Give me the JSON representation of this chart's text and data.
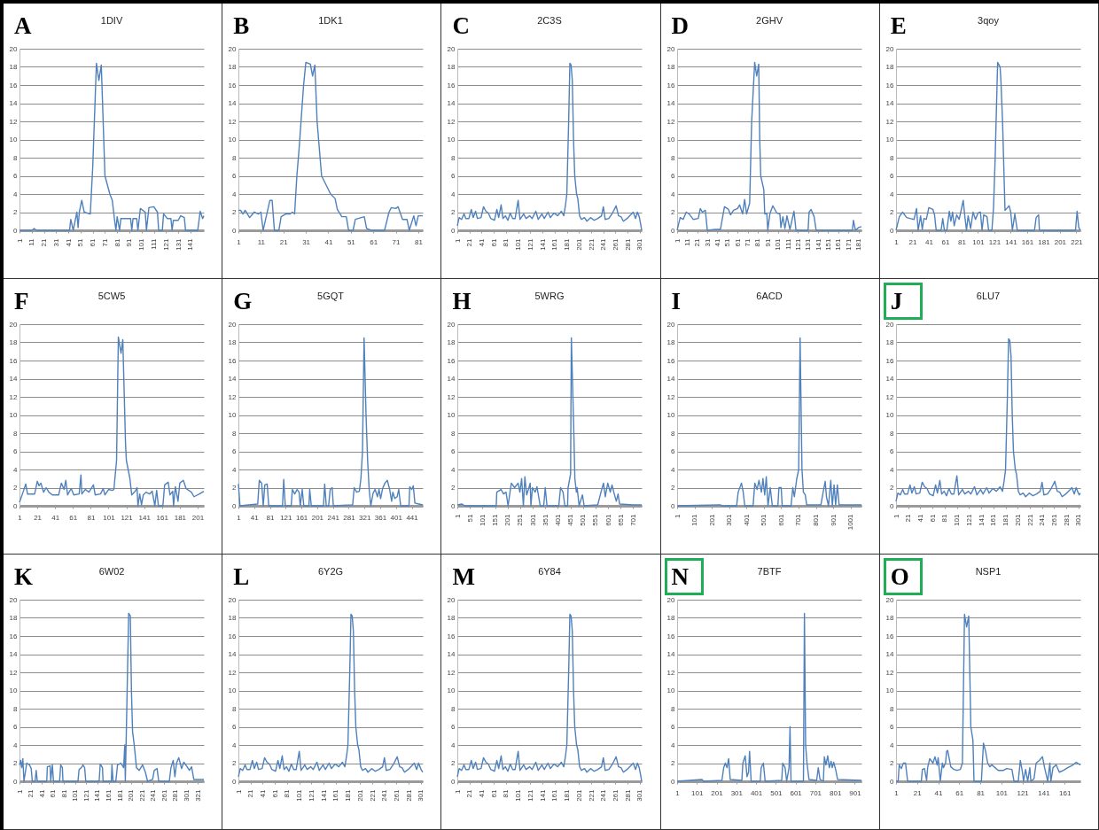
{
  "chart_data": [
    {
      "type": "line",
      "title": "1DIV",
      "annotations": [
        "A"
      ],
      "color": "#4f81bd",
      "grid": "y",
      "ylim": [
        0,
        20
      ],
      "yticks": [
        0,
        2,
        4,
        6,
        8,
        10,
        12,
        14,
        16,
        18,
        20
      ],
      "xlim": [
        1,
        152
      ],
      "xticks": [
        1,
        11,
        21,
        31,
        41,
        51,
        61,
        71,
        81,
        91,
        101,
        111,
        121,
        131,
        141
      ],
      "x": [
        1,
        11,
        13,
        15,
        42,
        43,
        45,
        48,
        49,
        50,
        52,
        54,
        59,
        61,
        64,
        66,
        68,
        71,
        75,
        77,
        79,
        80,
        81,
        83,
        84,
        88,
        92,
        93,
        94,
        97,
        98,
        100,
        104,
        105,
        107,
        111,
        114,
        115,
        118,
        119,
        122,
        125,
        126,
        127,
        131,
        133,
        136,
        137,
        147,
        149,
        151,
        152
      ],
      "values": [
        0,
        0,
        0.2,
        0,
        0,
        1.2,
        0,
        2,
        0.3,
        2,
        3.3,
        2,
        1.8,
        7,
        18.4,
        16.5,
        18.2,
        6,
        4,
        3.3,
        1,
        0,
        1.5,
        0,
        1.3,
        1.3,
        1.3,
        0,
        1.3,
        1.3,
        0,
        2.4,
        2,
        0,
        2.5,
        2.6,
        2,
        0,
        0,
        1.8,
        1.3,
        1.3,
        0,
        1.1,
        1.1,
        1.6,
        1.4,
        0,
        0,
        2.1,
        1.3,
        1.6
      ]
    },
    {
      "type": "line",
      "title": "1DK1",
      "annotations": [
        "B"
      ],
      "color": "#4f81bd",
      "grid": "y",
      "ylim": [
        0,
        20
      ],
      "yticks": [
        0,
        2,
        4,
        6,
        8,
        10,
        12,
        14,
        16,
        18,
        20
      ],
      "xlim": [
        1,
        83
      ],
      "xticks": [
        1,
        11,
        21,
        31,
        41,
        51,
        61,
        71,
        81
      ],
      "x": [
        1,
        2,
        3,
        4,
        6,
        8,
        10,
        11,
        12,
        15,
        16,
        17,
        19,
        20,
        22,
        24,
        25,
        26,
        27,
        28,
        30,
        31,
        33,
        34,
        35,
        36,
        38,
        40,
        42,
        44,
        45,
        47,
        49,
        50,
        52,
        53,
        57,
        58,
        60,
        66,
        68,
        69,
        71,
        72,
        74,
        76,
        77,
        79,
        80,
        81,
        83
      ],
      "values": [
        2.2,
        2.2,
        1.8,
        2.2,
        1.4,
        2,
        1.8,
        2,
        0,
        3.3,
        3.3,
        0,
        0,
        1.5,
        1.8,
        1.8,
        2,
        1.8,
        6,
        9,
        16,
        18.5,
        18.3,
        17,
        18.2,
        12,
        6,
        5,
        4,
        3.5,
        2.3,
        1.5,
        1.5,
        0,
        0,
        1.2,
        1.5,
        0.2,
        0,
        0,
        2,
        2.5,
        2.4,
        2.6,
        1.2,
        1.2,
        0,
        1.6,
        0.5,
        1.6,
        1.6
      ]
    },
    {
      "type": "line",
      "title": "2C3S",
      "annotations": [
        "C"
      ],
      "color": "#4f81bd",
      "grid": "y",
      "ylim": [
        0,
        20
      ],
      "yticks": [
        0,
        2,
        4,
        6,
        8,
        10,
        12,
        14,
        16,
        18,
        20
      ],
      "xlim": [
        1,
        304
      ],
      "xticks": [
        1,
        21,
        41,
        61,
        81,
        101,
        121,
        141,
        161,
        181,
        201,
        221,
        241,
        261,
        281,
        301
      ],
      "x": [
        1,
        4,
        8,
        12,
        15,
        20,
        24,
        27,
        31,
        34,
        40,
        44,
        48,
        52,
        56,
        62,
        66,
        69,
        73,
        76,
        80,
        84,
        88,
        92,
        96,
        101,
        104,
        110,
        114,
        120,
        124,
        130,
        134,
        140,
        144,
        150,
        154,
        160,
        166,
        172,
        176,
        179,
        181,
        184,
        186,
        188,
        190,
        192,
        194,
        197,
        199,
        202,
        205,
        210,
        214,
        220,
        226,
        232,
        238,
        241,
        244,
        250,
        256,
        262,
        266,
        270,
        274,
        280,
        286,
        290,
        294,
        297,
        300,
        302,
        304
      ],
      "values": [
        0.5,
        1.4,
        1.2,
        1.8,
        1.3,
        1.3,
        2.3,
        1.4,
        2.1,
        1.3,
        1.4,
        2.6,
        2.1,
        1.9,
        1.3,
        1.1,
        2.3,
        1.4,
        2.8,
        1.3,
        1.6,
        1.1,
        1.9,
        1.3,
        1.3,
        3.3,
        1.2,
        1.8,
        1.3,
        1.6,
        1.3,
        2.1,
        1.2,
        1.8,
        1.3,
        2.0,
        1.4,
        1.9,
        1.6,
        2.1,
        1.6,
        2.9,
        4,
        12,
        18.4,
        18.2,
        16.5,
        10,
        6,
        4,
        3.5,
        1.6,
        1.2,
        1.4,
        1.0,
        1.4,
        1.1,
        1.3,
        1.6,
        2.6,
        1.2,
        1.3,
        1.9,
        2.7,
        1.6,
        1.5,
        1.0,
        1.3,
        1.7,
        2.0,
        1.3,
        2.0,
        1.5,
        0.8,
        0
      ]
    },
    {
      "type": "line",
      "title": "2GHV",
      "annotations": [
        "D"
      ],
      "color": "#4f81bd",
      "grid": "y",
      "ylim": [
        0,
        20
      ],
      "yticks": [
        0,
        2,
        4,
        6,
        8,
        10,
        12,
        14,
        16,
        18,
        20
      ],
      "xlim": [
        1,
        184
      ],
      "xticks": [
        1,
        11,
        21,
        31,
        41,
        51,
        61,
        71,
        81,
        91,
        101,
        111,
        121,
        131,
        141,
        151,
        161,
        171,
        181
      ],
      "x": [
        1,
        4,
        7,
        10,
        13,
        17,
        22,
        24,
        26,
        29,
        31,
        39,
        44,
        48,
        52,
        54,
        57,
        61,
        63,
        66,
        68,
        70,
        73,
        75,
        78,
        80,
        82,
        83,
        84,
        87,
        88,
        90,
        91,
        93,
        96,
        100,
        103,
        104,
        106,
        108,
        110,
        113,
        117,
        119,
        131,
        132,
        134,
        137,
        139,
        175,
        176,
        178,
        181,
        184
      ],
      "values": [
        0,
        1.4,
        1.2,
        2,
        1.8,
        1.2,
        1.3,
        2.4,
        2,
        2.2,
        0,
        0.1,
        0.1,
        2.6,
        2.3,
        1.7,
        2.2,
        2.4,
        2.8,
        1.8,
        3.4,
        1.8,
        3,
        12,
        18.5,
        17,
        18.3,
        10,
        6,
        4.5,
        1.8,
        1.9,
        0,
        1.8,
        2.7,
        1.9,
        1.8,
        0.3,
        1.5,
        0.2,
        1.6,
        0.1,
        2.1,
        0,
        0,
        2,
        2.3,
        1.5,
        0,
        0,
        1.1,
        0,
        0.3,
        0.4
      ]
    },
    {
      "type": "line",
      "title": "3qoy",
      "annotations": [
        "E"
      ],
      "color": "#4f81bd",
      "grid": "y",
      "ylim": [
        0,
        20
      ],
      "yticks": [
        0,
        2,
        4,
        6,
        8,
        10,
        12,
        14,
        16,
        18,
        20
      ],
      "xlim": [
        1,
        226
      ],
      "xticks": [
        1,
        21,
        41,
        61,
        81,
        101,
        121,
        141,
        161,
        181,
        201,
        221
      ],
      "x": [
        1,
        5,
        9,
        14,
        18,
        23,
        26,
        28,
        31,
        33,
        35,
        38,
        41,
        46,
        48,
        50,
        56,
        58,
        60,
        63,
        66,
        68,
        70,
        72,
        75,
        78,
        80,
        83,
        85,
        87,
        89,
        92,
        95,
        98,
        101,
        104,
        106,
        108,
        112,
        114,
        118,
        120,
        122,
        125,
        128,
        129,
        131,
        134,
        137,
        139,
        141,
        143,
        146,
        149,
        170,
        172,
        175,
        176,
        220,
        222,
        224,
        226
      ],
      "values": [
        0,
        1.5,
        2,
        1.4,
        1.3,
        1.2,
        2.4,
        0,
        1.6,
        0.1,
        1.3,
        1.2,
        2.5,
        2.3,
        1.7,
        0,
        0,
        1.3,
        0,
        0,
        2.1,
        1,
        2,
        0.5,
        1.7,
        1.2,
        2,
        3.3,
        1.5,
        0,
        1.6,
        0.2,
        2,
        1.2,
        1.9,
        2,
        0,
        1.7,
        1.5,
        0,
        0,
        2.5,
        8,
        18.5,
        18,
        16.5,
        12,
        2.2,
        2.5,
        2.7,
        2,
        0,
        1.8,
        0,
        0,
        1.4,
        1.7,
        0,
        0,
        2.1,
        0.3,
        0
      ]
    },
    {
      "type": "line",
      "title": "5CW5",
      "annotations": [
        "F"
      ],
      "color": "#4f81bd",
      "grid": "y",
      "ylim": [
        0,
        20
      ],
      "yticks": [
        0,
        2,
        4,
        6,
        8,
        10,
        12,
        14,
        16,
        18,
        20
      ],
      "xlim": [
        1,
        208
      ],
      "xticks": [
        1,
        21,
        41,
        61,
        81,
        101,
        121,
        141,
        161,
        181,
        201
      ],
      "x": [
        1,
        5,
        8,
        10,
        18,
        21,
        23,
        25,
        28,
        31,
        34,
        38,
        45,
        48,
        51,
        53,
        55,
        59,
        62,
        68,
        70,
        71,
        75,
        79,
        84,
        86,
        92,
        95,
        97,
        101,
        105,
        107,
        110,
        112,
        115,
        117,
        120,
        121,
        125,
        127,
        131,
        133,
        134,
        136,
        138,
        140,
        143,
        147,
        150,
        153,
        155,
        157,
        162,
        164,
        168,
        170,
        173,
        174,
        176,
        179,
        181,
        185,
        188,
        194,
        197,
        203,
        208
      ],
      "values": [
        0.4,
        1.5,
        2.4,
        1.3,
        1.3,
        2.7,
        2.2,
        2.5,
        1.5,
        2,
        1.5,
        1.2,
        1.2,
        2.5,
        1.8,
        2.8,
        1.2,
        1.9,
        1.2,
        1.3,
        3.4,
        1.3,
        1.8,
        1.5,
        2.3,
        1.2,
        1.3,
        1.9,
        1.2,
        1.8,
        1.7,
        1.8,
        5,
        18.6,
        16.8,
        18.3,
        7,
        5,
        3,
        1.2,
        1.6,
        2,
        0,
        1.3,
        0.1,
        1.2,
        1.5,
        1.3,
        1.6,
        0,
        1.7,
        0,
        0,
        2.3,
        2.6,
        1.2,
        1.6,
        0,
        2.1,
        0.5,
        2.5,
        2.8,
        1.9,
        1.5,
        1,
        1.3,
        1.6
      ]
    },
    {
      "type": "line",
      "title": "5GQT",
      "annotations": [
        "G"
      ],
      "color": "#4f81bd",
      "grid": "y",
      "ylim": [
        0,
        20
      ],
      "yticks": [
        0,
        2,
        4,
        6,
        8,
        10,
        12,
        14,
        16,
        18,
        20
      ],
      "xlim": [
        1,
        469
      ],
      "xticks": [
        1,
        41,
        81,
        121,
        161,
        201,
        241,
        281,
        321,
        361,
        401,
        441
      ],
      "x": [
        1,
        5,
        50,
        54,
        60,
        64,
        68,
        74,
        78,
        113,
        116,
        120,
        135,
        138,
        144,
        150,
        155,
        158,
        163,
        167,
        180,
        182,
        186,
        217,
        220,
        224,
        230,
        234,
        239,
        242,
        291,
        295,
        301,
        308,
        312,
        316,
        320,
        325,
        329,
        333,
        337,
        343,
        348,
        354,
        358,
        362,
        367,
        373,
        379,
        385,
        390,
        393,
        398,
        404,
        408,
        413,
        434,
        436,
        441,
        445,
        449,
        459,
        469
      ],
      "values": [
        2.4,
        0,
        0.2,
        2.8,
        2.5,
        0,
        2.3,
        2.4,
        0,
        0,
        2.9,
        0,
        0,
        1.8,
        1.3,
        1.8,
        1.5,
        0,
        1.8,
        0,
        0,
        1.8,
        0,
        0,
        2.4,
        0,
        0,
        1.8,
        2,
        0,
        0.1,
        2,
        1.5,
        1.6,
        3,
        6,
        18.5,
        10,
        5,
        1.8,
        0,
        1.4,
        1.8,
        1,
        1.8,
        0.8,
        1.9,
        2.5,
        2.8,
        1.8,
        0.5,
        1.5,
        0.8,
        1,
        1.8,
        0,
        0,
        2.1,
        1.8,
        2.2,
        0.3,
        0.2,
        0.1
      ]
    },
    {
      "type": "line",
      "title": "5WRG",
      "annotations": [
        "H"
      ],
      "color": "#4f81bd",
      "grid": "y",
      "ylim": [
        0,
        20
      ],
      "yticks": [
        0,
        2,
        4,
        6,
        8,
        10,
        12,
        14,
        16,
        18,
        20
      ],
      "xlim": [
        1,
        735
      ],
      "xticks": [
        1,
        51,
        101,
        151,
        201,
        251,
        301,
        351,
        401,
        451,
        501,
        551,
        601,
        651,
        701
      ],
      "x": [
        1,
        20,
        30,
        156,
        158,
        175,
        185,
        195,
        203,
        216,
        229,
        243,
        250,
        257,
        264,
        270,
        277,
        284,
        291,
        294,
        300,
        311,
        318,
        331,
        345,
        351,
        358,
        405,
        412,
        422,
        429,
        440,
        442,
        452,
        455,
        465,
        469,
        475,
        478,
        486,
        499,
        506,
        560,
        573,
        583,
        590,
        600,
        610,
        617,
        624,
        634,
        641,
        647,
        701,
        735
      ],
      "values": [
        0.1,
        0.2,
        0,
        0,
        1.5,
        1.8,
        1.3,
        1.5,
        0,
        2.5,
        2,
        2.5,
        1.5,
        3,
        0,
        3.2,
        1.2,
        1.8,
        2.5,
        0,
        2,
        1.5,
        2.1,
        0,
        0,
        2,
        0,
        0,
        2,
        1.5,
        0,
        0,
        2,
        3.5,
        18.5,
        8,
        3,
        1.5,
        2,
        0,
        1.2,
        0,
        0.1,
        1.5,
        2.5,
        1,
        2.5,
        1.5,
        2.3,
        1.5,
        0.5,
        1.3,
        0.2,
        0.1,
        0.1
      ]
    },
    {
      "type": "line",
      "title": "6ACD",
      "annotations": [
        "I"
      ],
      "color": "#4f81bd",
      "grid": "y",
      "ylim": [
        0,
        20
      ],
      "yticks": [
        0,
        2,
        4,
        6,
        8,
        10,
        12,
        14,
        16,
        18,
        20
      ],
      "xlim": [
        1,
        1064
      ],
      "xticks": [
        1,
        101,
        201,
        301,
        401,
        501,
        601,
        701,
        801,
        901,
        1001
      ],
      "x": [
        1,
        249,
        260,
        344,
        353,
        372,
        382,
        391,
        439,
        449,
        462,
        473,
        487,
        496,
        506,
        515,
        525,
        538,
        550,
        582,
        588,
        601,
        607,
        658,
        668,
        677,
        691,
        702,
        710,
        721,
        729,
        740,
        748,
        830,
        843,
        855,
        862,
        874,
        887,
        896,
        906,
        915,
        925,
        935,
        1064
      ],
      "values": [
        0,
        0.1,
        0,
        0,
        1.5,
        2.5,
        1.5,
        0,
        0,
        2.5,
        1.8,
        2.8,
        1.5,
        3,
        1.2,
        3.2,
        0,
        2,
        0,
        0,
        2,
        2,
        0,
        0,
        2,
        1,
        3,
        4,
        18.5,
        4,
        1.5,
        1.2,
        0.1,
        0.1,
        1.5,
        2.7,
        1,
        0,
        2.8,
        0,
        2.3,
        0.1,
        2.3,
        0.1,
        0.1
      ]
    },
    {
      "type": "line",
      "title": "6LU7",
      "annotations": [
        "J"
      ],
      "color": "#4f81bd",
      "grid": "y",
      "ylim": [
        0,
        20
      ],
      "yticks": [
        0,
        2,
        4,
        6,
        8,
        10,
        12,
        14,
        16,
        18,
        20
      ],
      "xlim": [
        1,
        304
      ],
      "xticks": [
        1,
        21,
        41,
        61,
        81,
        101,
        121,
        141,
        161,
        181,
        201,
        221,
        241,
        261,
        281,
        301
      ],
      "x": [
        1,
        4,
        8,
        12,
        15,
        20,
        24,
        27,
        31,
        34,
        40,
        44,
        48,
        52,
        56,
        62,
        66,
        69,
        73,
        76,
        80,
        84,
        88,
        92,
        96,
        101,
        104,
        110,
        114,
        120,
        124,
        130,
        134,
        140,
        144,
        150,
        154,
        160,
        166,
        172,
        176,
        179,
        181,
        184,
        186,
        188,
        190,
        192,
        194,
        197,
        199,
        202,
        205,
        210,
        214,
        220,
        226,
        232,
        238,
        241,
        244,
        250,
        256,
        262,
        266,
        270,
        274,
        280,
        286,
        290,
        294,
        297,
        300,
        302,
        304
      ],
      "values": [
        0.5,
        1.4,
        1.2,
        1.8,
        1.3,
        1.3,
        2.3,
        1.4,
        2.1,
        1.3,
        1.4,
        2.6,
        2.1,
        1.9,
        1.3,
        1.1,
        2.3,
        1.4,
        2.8,
        1.3,
        1.6,
        1.1,
        1.9,
        1.3,
        1.3,
        3.3,
        1.2,
        1.8,
        1.3,
        1.6,
        1.3,
        2.1,
        1.2,
        1.8,
        1.3,
        2.0,
        1.4,
        1.9,
        1.6,
        2.1,
        1.6,
        2.9,
        4,
        12,
        18.4,
        18.2,
        16.5,
        10,
        6,
        4,
        3.5,
        1.6,
        1.2,
        1.4,
        1.0,
        1.4,
        1.1,
        1.3,
        1.6,
        2.6,
        1.2,
        1.3,
        1.9,
        2.7,
        1.6,
        1.5,
        1.0,
        1.3,
        1.7,
        2.0,
        1.3,
        2.0,
        1.5,
        1.2,
        1.4
      ]
    },
    {
      "type": "line",
      "title": "6W02",
      "annotations": [
        "K"
      ],
      "color": "#4f81bd",
      "grid": "y",
      "ylim": [
        0,
        20
      ],
      "yticks": [
        0,
        2,
        4,
        6,
        8,
        10,
        12,
        14,
        16,
        18,
        20
      ],
      "xlim": [
        1,
        332
      ],
      "xticks": [
        1,
        21,
        41,
        61,
        81,
        101,
        121,
        141,
        161,
        181,
        201,
        221,
        241,
        261,
        281,
        301,
        321
      ],
      "x": [
        1,
        3,
        5,
        7,
        9,
        14,
        19,
        22,
        24,
        29,
        31,
        33,
        50,
        51,
        56,
        57,
        60,
        62,
        73,
        75,
        78,
        79,
        106,
        108,
        112,
        115,
        118,
        120,
        144,
        146,
        150,
        151,
        166,
        167,
        169,
        174,
        177,
        183,
        188,
        190,
        191,
        193,
        197,
        200,
        202,
        204,
        207,
        211,
        216,
        222,
        227,
        231,
        240,
        243,
        248,
        251,
        270,
        273,
        277,
        280,
        283,
        287,
        292,
        296,
        302,
        306,
        310,
        314,
        322,
        332
      ],
      "values": [
        1.8,
        2.3,
        1.5,
        2.5,
        0,
        2,
        1.8,
        1.4,
        0,
        0,
        1.2,
        0,
        0,
        1.6,
        1.7,
        0,
        1.8,
        0,
        0,
        1.8,
        1.5,
        0,
        0,
        1.3,
        1.5,
        1.8,
        1.5,
        0,
        0,
        1.9,
        1.5,
        0,
        0,
        1.8,
        0,
        0,
        1.8,
        2,
        1.5,
        4,
        0,
        6,
        18.5,
        18.2,
        10,
        5.5,
        4,
        1.5,
        1.2,
        1.8,
        1,
        0,
        0.2,
        1.2,
        1.4,
        0,
        0,
        1.5,
        2.3,
        0.5,
        2,
        2.6,
        1.4,
        2.1,
        1.6,
        1.2,
        1.6,
        0.2,
        0.2,
        0.2
      ]
    },
    {
      "type": "line",
      "title": "6Y2G",
      "annotations": [
        "L"
      ],
      "color": "#4f81bd",
      "grid": "y",
      "ylim": [
        0,
        20
      ],
      "yticks": [
        0,
        2,
        4,
        6,
        8,
        10,
        12,
        14,
        16,
        18,
        20
      ],
      "xlim": [
        1,
        304
      ],
      "xticks": [
        1,
        21,
        41,
        61,
        81,
        101,
        121,
        141,
        161,
        181,
        201,
        221,
        241,
        261,
        281,
        301
      ],
      "x": [
        1,
        4,
        8,
        12,
        15,
        20,
        24,
        27,
        31,
        34,
        40,
        44,
        48,
        52,
        56,
        62,
        66,
        69,
        73,
        76,
        80,
        84,
        88,
        92,
        96,
        101,
        104,
        110,
        114,
        120,
        124,
        130,
        134,
        140,
        144,
        150,
        154,
        160,
        166,
        172,
        176,
        179,
        181,
        184,
        186,
        188,
        190,
        192,
        194,
        197,
        199,
        202,
        205,
        210,
        214,
        220,
        226,
        232,
        238,
        241,
        244,
        250,
        256,
        262,
        266,
        270,
        274,
        280,
        286,
        290,
        294,
        297,
        300,
        302,
        304
      ],
      "values": [
        0.5,
        1.4,
        1.2,
        1.8,
        1.3,
        1.3,
        2.3,
        1.4,
        2.1,
        1.3,
        1.4,
        2.6,
        2.1,
        1.9,
        1.3,
        1.1,
        2.3,
        1.4,
        2.8,
        1.3,
        1.6,
        1.1,
        1.9,
        1.3,
        1.3,
        3.3,
        1.2,
        1.8,
        1.3,
        1.6,
        1.3,
        2.1,
        1.2,
        1.8,
        1.3,
        2.0,
        1.4,
        1.9,
        1.6,
        2.1,
        1.6,
        2.9,
        4,
        12,
        18.4,
        18.2,
        16.5,
        10,
        6,
        4,
        3.5,
        1.6,
        1.2,
        1.4,
        1.0,
        1.4,
        1.1,
        1.3,
        1.6,
        2.6,
        1.2,
        1.3,
        1.9,
        2.7,
        1.6,
        1.5,
        1.0,
        1.3,
        1.7,
        2.0,
        1.3,
        2.0,
        1.5,
        1.2,
        1.0
      ]
    },
    {
      "type": "line",
      "title": "6Y84",
      "annotations": [
        "M"
      ],
      "color": "#4f81bd",
      "grid": "y",
      "ylim": [
        0,
        20
      ],
      "yticks": [
        0,
        2,
        4,
        6,
        8,
        10,
        12,
        14,
        16,
        18,
        20
      ],
      "xlim": [
        1,
        304
      ],
      "xticks": [
        1,
        21,
        41,
        61,
        81,
        101,
        121,
        141,
        161,
        181,
        201,
        221,
        241,
        261,
        281,
        301
      ],
      "x": [
        1,
        4,
        8,
        12,
        15,
        20,
        24,
        27,
        31,
        34,
        40,
        44,
        48,
        52,
        56,
        62,
        66,
        69,
        73,
        76,
        80,
        84,
        88,
        92,
        96,
        101,
        104,
        110,
        114,
        120,
        124,
        130,
        134,
        140,
        144,
        150,
        154,
        160,
        166,
        172,
        176,
        179,
        181,
        184,
        186,
        188,
        190,
        192,
        194,
        197,
        199,
        202,
        205,
        210,
        214,
        220,
        226,
        232,
        238,
        241,
        244,
        250,
        256,
        262,
        266,
        270,
        274,
        280,
        286,
        290,
        294,
        297,
        300,
        302,
        304
      ],
      "values": [
        0.5,
        1.4,
        1.2,
        1.8,
        1.3,
        1.3,
        2.3,
        1.4,
        2.1,
        1.3,
        1.4,
        2.6,
        2.1,
        1.9,
        1.3,
        1.1,
        2.3,
        1.4,
        2.8,
        1.3,
        1.6,
        1.1,
        1.9,
        1.3,
        1.3,
        3.3,
        1.2,
        1.8,
        1.3,
        1.6,
        1.3,
        2.1,
        1.2,
        1.8,
        1.3,
        2.0,
        1.4,
        1.9,
        1.6,
        2.1,
        1.6,
        2.9,
        4,
        12,
        18.4,
        18.2,
        16.5,
        10,
        6,
        4,
        3.5,
        1.6,
        1.2,
        1.4,
        1.0,
        1.4,
        1.1,
        1.3,
        1.6,
        2.6,
        1.2,
        1.3,
        1.9,
        2.7,
        1.6,
        1.5,
        1.0,
        1.3,
        1.7,
        2.0,
        1.3,
        2.0,
        1.5,
        0.8,
        0
      ]
    },
    {
      "type": "line",
      "title": "7BTF",
      "annotations": [
        "N"
      ],
      "color": "#4f81bd",
      "grid": "y",
      "ylim": [
        0,
        20
      ],
      "yticks": [
        0,
        2,
        4,
        6,
        8,
        10,
        12,
        14,
        16,
        18,
        20
      ],
      "xlim": [
        1,
        935
      ],
      "xticks": [
        1,
        101,
        201,
        301,
        401,
        501,
        601,
        701,
        801,
        901
      ],
      "x": [
        1,
        127,
        135,
        228,
        237,
        245,
        254,
        262,
        270,
        329,
        334,
        346,
        355,
        363,
        368,
        376,
        422,
        427,
        438,
        447,
        531,
        536,
        548,
        556,
        568,
        573,
        578,
        641,
        646,
        652,
        659,
        669,
        708,
        716,
        725,
        742,
        747,
        755,
        764,
        772,
        781,
        787,
        794,
        804,
        814,
        935
      ],
      "values": [
        0,
        0.2,
        0,
        0.1,
        1.5,
        2,
        1.5,
        2.5,
        0.2,
        0.1,
        2,
        2.8,
        0.5,
        1,
        3.3,
        0,
        0,
        1.5,
        2,
        0,
        0.1,
        2,
        1.5,
        0,
        1.5,
        6,
        0,
        0,
        18.5,
        4,
        2,
        0.2,
        0.1,
        1.5,
        0.2,
        0,
        2.7,
        1.8,
        2.8,
        1.5,
        2.2,
        1.5,
        2.1,
        1.3,
        0.2,
        0.1
      ]
    },
    {
      "type": "line",
      "title": "NSP1",
      "annotations": [
        "O"
      ],
      "color": "#4f81bd",
      "grid": "y",
      "ylim": [
        0,
        20
      ],
      "yticks": [
        0,
        2,
        4,
        6,
        8,
        10,
        12,
        14,
        16,
        18,
        20
      ],
      "xlim": [
        1,
        176
      ],
      "xticks": [
        1,
        21,
        41,
        61,
        81,
        101,
        121,
        141,
        161
      ],
      "x": [
        1,
        3,
        4,
        6,
        8,
        10,
        12,
        25,
        26,
        28,
        30,
        31,
        33,
        36,
        38,
        40,
        41,
        43,
        45,
        46,
        48,
        49,
        50,
        53,
        56,
        59,
        62,
        64,
        66,
        68,
        70,
        72,
        74,
        75,
        82,
        84,
        86,
        88,
        90,
        92,
        95,
        98,
        103,
        106,
        111,
        113,
        117,
        119,
        121,
        122,
        124,
        126,
        128,
        129,
        132,
        134,
        137,
        140,
        142,
        144,
        145,
        147,
        148,
        150,
        153,
        156,
        160,
        164,
        169,
        172,
        176
      ],
      "values": [
        0,
        0,
        1.8,
        1.4,
        2,
        2,
        0,
        0,
        1.3,
        1.4,
        0.1,
        1.5,
        2.5,
        2,
        2.7,
        1.8,
        2.6,
        0,
        2,
        1.5,
        2,
        3.3,
        3.4,
        1.6,
        1.3,
        1.2,
        1.3,
        2,
        18.4,
        17,
        18.2,
        6,
        4.5,
        0,
        0,
        4.2,
        3.3,
        2,
        1.6,
        1.8,
        1.5,
        1.2,
        1.2,
        1.4,
        1.3,
        0,
        0,
        2.3,
        1,
        0,
        1.3,
        0,
        1.5,
        0,
        0.3,
        2,
        2.3,
        2.7,
        1.5,
        0.5,
        0,
        2,
        0,
        1.5,
        1.8,
        1,
        1.2,
        1.5,
        1.8,
        2.1,
        1.8
      ]
    }
  ]
}
